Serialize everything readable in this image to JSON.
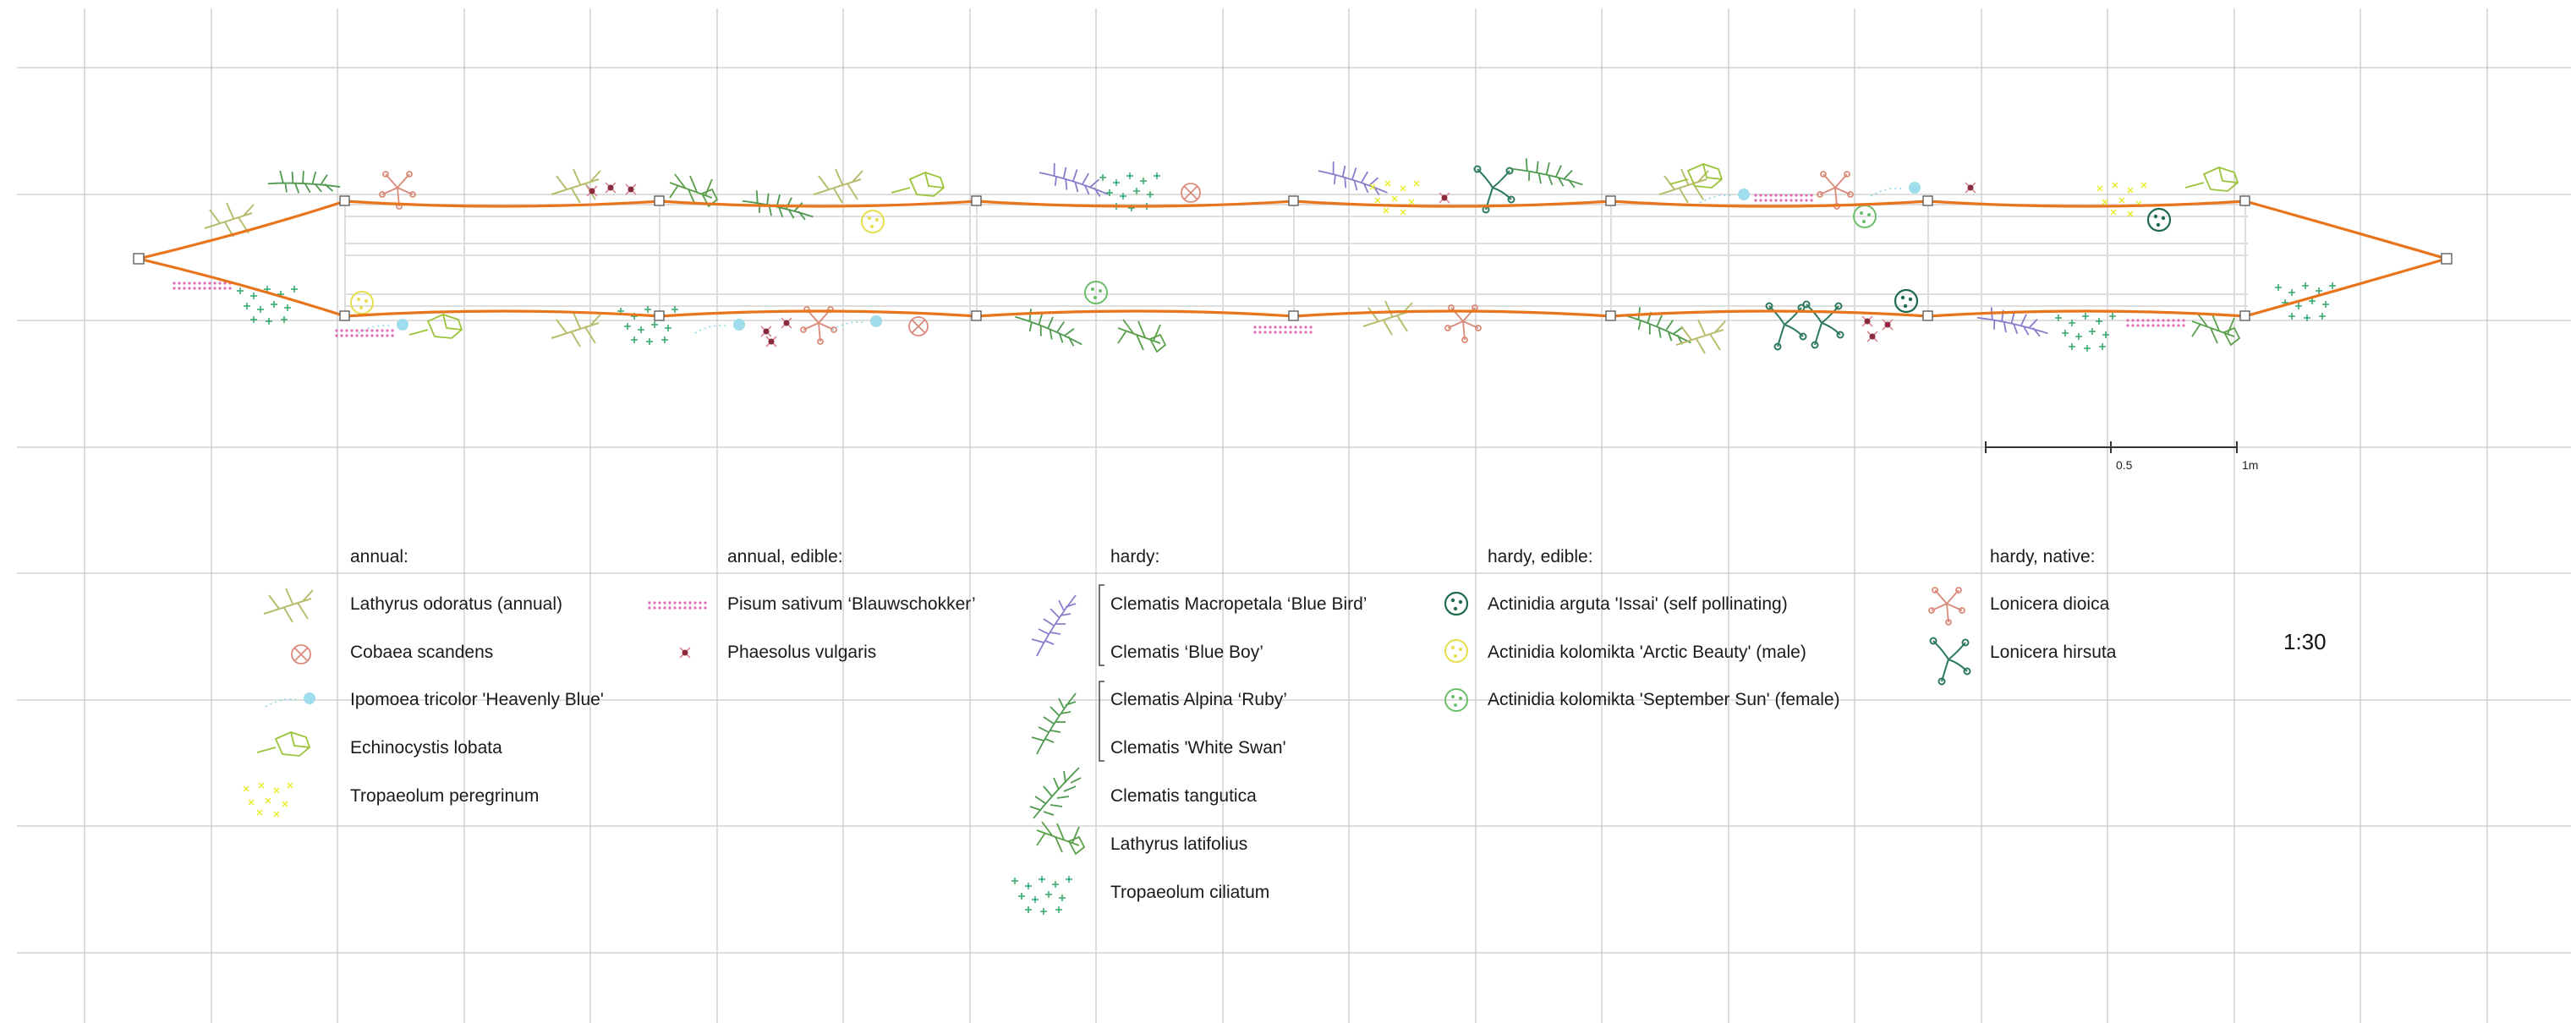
{
  "legend": {
    "annual": {
      "header": "annual:",
      "items": [
        {
          "label": "Lathyrus odoratus (annual)",
          "icon": "lathyrus-odoratus-icon"
        },
        {
          "label": "Cobaea scandens",
          "icon": "cobaea-scandens-icon"
        },
        {
          "label": "Ipomoea tricolor 'Heavenly Blue'",
          "icon": "ipomoea-tricolor-icon"
        },
        {
          "label": "Echinocystis lobata",
          "icon": "echinocystis-lobata-icon"
        },
        {
          "label": "Tropaeolum peregrinum",
          "icon": "tropaeolum-peregrinum-icon"
        }
      ]
    },
    "annual_edible": {
      "header": "annual, edible:",
      "items": [
        {
          "label": "Pisum sativum ‘Blauwschokker’",
          "icon": "pisum-sativum-icon"
        },
        {
          "label": "Phaesolus vulgaris",
          "icon": "phaseolus-vulgaris-icon"
        }
      ]
    },
    "hardy": {
      "header": "hardy:",
      "items": [
        {
          "label": "Clematis Macropetala ‘Blue Bird’",
          "icon": "clematis-macropetala-icon"
        },
        {
          "label": "Clematis ‘Blue Boy’",
          "icon": "clematis-macropetala-icon"
        },
        {
          "label": "Clematis Alpina ‘Ruby’",
          "icon": "clematis-alpina-icon"
        },
        {
          "label": "Clematis 'White Swan'",
          "icon": "clematis-alpina-icon"
        },
        {
          "label": "Clematis tangutica",
          "icon": "clematis-tangutica-icon"
        },
        {
          "label": "Lathyrus latifolius",
          "icon": "lathyrus-latifolius-icon"
        },
        {
          "label": "Tropaeolum ciliatum",
          "icon": "tropaeolum-ciliatum-icon"
        }
      ]
    },
    "hardy_edible": {
      "header": "hardy, edible:",
      "items": [
        {
          "label": "Actinidia arguta 'Issai' (self pollinating)",
          "icon": "actinidia-arguta-icon"
        },
        {
          "label": "Actinidia kolomikta 'Arctic Beauty' (male)",
          "icon": "actinidia-arctic-beauty-icon"
        },
        {
          "label": "Actinidia kolomikta 'September Sun' (female)",
          "icon": "actinidia-september-sun-icon"
        }
      ]
    },
    "hardy_native": {
      "header": "hardy, native:",
      "items": [
        {
          "label": "Lonicera dioica",
          "icon": "lonicera-dioica-icon"
        },
        {
          "label": "Lonicera hirsuta",
          "icon": "lonicera-hirsuta-icon"
        }
      ]
    }
  },
  "scale_bar": {
    "mid_label": "0.5",
    "end_label": "1m"
  },
  "scale_ratio": "1:30",
  "colors": {
    "grid": "#c9c9c9",
    "structure_outline": "#e8741c",
    "lathyrus_odoratus": "#b9bd6e",
    "cobaea": "#d98a7a",
    "ipomoea": "#8fd6e8",
    "echinocystis": "#9cc43a",
    "tropaeolum_peregrinum": "#eaea2c",
    "pisum": "#e06ab8",
    "phaseolus": "#8a2a3c",
    "clematis_macropetala": "#8a7ccc",
    "clematis_alpina": "#4f9a50",
    "lathyrus_latifolius": "#5aa04a",
    "tropaeolum_ciliatum": "#2fa86b",
    "actinidia_arguta": "#1f6b4a",
    "actinidia_arctic": "#e4df4a",
    "actinidia_september": "#6cbf6a",
    "lonicera_dioica": "#d98a7a",
    "lonicera_hirsuta": "#2e7a5c"
  }
}
